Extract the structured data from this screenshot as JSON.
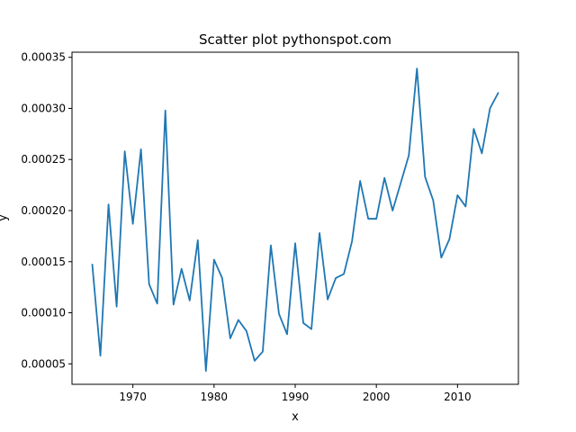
{
  "chart_data": {
    "type": "line",
    "title": "Scatter plot pythonspot.com",
    "xlabel": "x",
    "ylabel": "y",
    "xlim": [
      1962.5,
      2017.5
    ],
    "ylim": [
      3e-05,
      0.000355
    ],
    "grid": false,
    "legend": "none",
    "line_color": "#1f77b4",
    "xticks": [
      {
        "value": 1970,
        "label": "1970"
      },
      {
        "value": 1980,
        "label": "1980"
      },
      {
        "value": 1990,
        "label": "1990"
      },
      {
        "value": 2000,
        "label": "2000"
      },
      {
        "value": 2010,
        "label": "2010"
      }
    ],
    "yticks": [
      {
        "value": 5e-05,
        "label": "0.00005"
      },
      {
        "value": 0.0001,
        "label": "0.00010"
      },
      {
        "value": 0.00015,
        "label": "0.00015"
      },
      {
        "value": 0.0002,
        "label": "0.00020"
      },
      {
        "value": 0.00025,
        "label": "0.00025"
      },
      {
        "value": 0.0003,
        "label": "0.00030"
      },
      {
        "value": 0.00035,
        "label": "0.00035"
      }
    ],
    "series": [
      {
        "x": [
          1965,
          1966,
          1967,
          1968,
          1969,
          1970,
          1971,
          1972,
          1973,
          1974,
          1975,
          1976,
          1977,
          1978,
          1979,
          1980,
          1981,
          1982,
          1983,
          1984,
          1985,
          1986,
          1987,
          1988,
          1989,
          1990,
          1991,
          1992,
          1993,
          1994,
          1995,
          1996,
          1997,
          1998,
          1999,
          2000,
          2001,
          2002,
          2003,
          2004,
          2005,
          2006,
          2007,
          2008,
          2009,
          2010,
          2011,
          2012,
          2013,
          2014,
          2015
        ],
        "y": [
          0.000147,
          5.8e-05,
          0.000206,
          0.000106,
          0.000258,
          0.000187,
          0.00026,
          0.000128,
          0.000109,
          0.000298,
          0.000108,
          0.000143,
          0.000112,
          0.000171,
          4.3e-05,
          0.000152,
          0.000134,
          7.5e-05,
          9.3e-05,
          8.2e-05,
          5.3e-05,
          6.2e-05,
          0.000166,
          9.9e-05,
          7.9e-05,
          0.000168,
          9e-05,
          8.4e-05,
          0.000178,
          0.000113,
          0.000134,
          0.000138,
          0.00017,
          0.000229,
          0.000192,
          0.000192,
          0.000232,
          0.0002,
          0.000227,
          0.000254,
          0.000339,
          0.000233,
          0.00021,
          0.000154,
          0.000172,
          0.000215,
          0.000204,
          0.00028,
          0.000256,
          0.0003,
          0.000315
        ]
      }
    ]
  }
}
